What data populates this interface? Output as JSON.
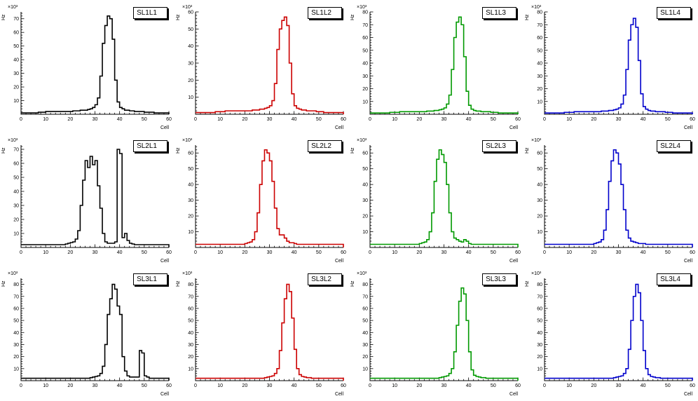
{
  "layout": {
    "rows": 3,
    "cols": 4
  },
  "axis": {
    "xlabel": "Cell",
    "ylabel": "Hz",
    "y_multiplier": "×10³"
  },
  "chart_data": [
    {
      "type": "histogram",
      "title": "SL1L1",
      "color": "#000000",
      "xlabel": "Cell",
      "ylabel": "Hz",
      "y_axis_multiplier": "×10³",
      "x_range": [
        0,
        60
      ],
      "y_max": 75,
      "y_tick_step": 10,
      "bin_width": 1,
      "bins_unit": "×10³ Hz",
      "bins": [
        1,
        1,
        1,
        1,
        1,
        1,
        1,
        1.5,
        1.5,
        1.5,
        2,
        2,
        2,
        2,
        2,
        2,
        2,
        2,
        2,
        2,
        2,
        2.5,
        2.5,
        2.5,
        3,
        3,
        3,
        3.5,
        4,
        5,
        7,
        12,
        28,
        52,
        65,
        72,
        70,
        55,
        25,
        9,
        5,
        4,
        3,
        3,
        2.5,
        2.5,
        2,
        2,
        2,
        2,
        1.5,
        1.5,
        1.5,
        1.5,
        1,
        1,
        1,
        1,
        1,
        1
      ]
    },
    {
      "type": "histogram",
      "title": "SL1L2",
      "color": "#cc0000",
      "xlabel": "Cell",
      "ylabel": "Hz",
      "y_axis_multiplier": "×10³",
      "x_range": [
        0,
        60
      ],
      "y_max": 60,
      "y_tick_step": 10,
      "bin_width": 1,
      "bins_unit": "×10³ Hz",
      "bins": [
        1,
        1,
        1,
        1,
        1,
        1,
        1,
        1,
        1.5,
        1.5,
        1.5,
        1.5,
        2,
        2,
        2,
        2,
        2,
        2,
        2,
        2,
        2,
        2,
        2,
        2.5,
        2.5,
        2.5,
        3,
        3,
        3.5,
        4,
        5,
        8,
        18,
        38,
        50,
        55,
        57,
        52,
        30,
        12,
        5,
        3.5,
        3,
        2.5,
        2.5,
        2,
        2,
        2,
        2,
        1.5,
        1.5,
        1.5,
        1,
        1,
        1,
        1,
        1,
        1,
        1,
        1
      ]
    },
    {
      "type": "histogram",
      "title": "SL1L3",
      "color": "#009900",
      "xlabel": "Cell",
      "ylabel": "Hz",
      "y_axis_multiplier": "×10³",
      "x_range": [
        0,
        60
      ],
      "y_max": 80,
      "y_tick_step": 10,
      "bin_width": 1,
      "bins_unit": "×10³ Hz",
      "bins": [
        1,
        1,
        1,
        1,
        1,
        1,
        1,
        1,
        1.5,
        1.5,
        1.5,
        1.5,
        2,
        2,
        2,
        2,
        2,
        2,
        2,
        2,
        2,
        2,
        2,
        2.5,
        2.5,
        2.5,
        3,
        3,
        3.5,
        4,
        5,
        8,
        15,
        35,
        60,
        72,
        76,
        70,
        45,
        18,
        7,
        4,
        3,
        2.5,
        2.5,
        2,
        2,
        2,
        2,
        1.5,
        1.5,
        1.5,
        1,
        1,
        1,
        1,
        1,
        1,
        1,
        1
      ]
    },
    {
      "type": "histogram",
      "title": "SL1L4",
      "color": "#0000cc",
      "xlabel": "Cell",
      "ylabel": "Hz",
      "y_axis_multiplier": "×10³",
      "x_range": [
        0,
        60
      ],
      "y_max": 80,
      "y_tick_step": 10,
      "bin_width": 1,
      "bins_unit": "×10³ Hz",
      "bins": [
        1,
        1,
        1,
        1,
        1,
        1,
        1,
        1,
        1.5,
        1.5,
        1.5,
        1.5,
        2,
        2,
        2,
        2,
        2,
        2,
        2,
        2,
        2,
        2,
        2,
        2.5,
        2.5,
        2.5,
        3,
        3,
        3.5,
        4,
        5,
        8,
        15,
        35,
        58,
        70,
        75,
        68,
        42,
        16,
        6,
        4,
        3,
        2.5,
        2.5,
        2,
        2,
        2,
        2,
        1.5,
        1.5,
        1.5,
        1,
        1,
        1,
        1,
        1,
        1,
        1,
        1
      ]
    },
    {
      "type": "histogram",
      "title": "SL2L1",
      "color": "#000000",
      "xlabel": "Cell",
      "ylabel": "Hz",
      "y_axis_multiplier": "×10³",
      "x_range": [
        0,
        60
      ],
      "y_max": 73,
      "y_tick_step": 10,
      "bin_width": 1,
      "bins_unit": "×10³ Hz",
      "bins": [
        2,
        2,
        2,
        2,
        2,
        2,
        2,
        2,
        2,
        2,
        2,
        2,
        2,
        2,
        2,
        2,
        2,
        2,
        2.5,
        3,
        3.5,
        4,
        6,
        12,
        30,
        48,
        62,
        57,
        65,
        59,
        62,
        44,
        28,
        10,
        4,
        3,
        3,
        3,
        4,
        70,
        67,
        7,
        10,
        5,
        3,
        2.5,
        2,
        2,
        2,
        2,
        2,
        2,
        2,
        2,
        2,
        2,
        2,
        2,
        2,
        2
      ]
    },
    {
      "type": "histogram",
      "title": "SL2L2",
      "color": "#cc0000",
      "xlabel": "Cell",
      "ylabel": "Hz",
      "y_axis_multiplier": "×10³",
      "x_range": [
        0,
        60
      ],
      "y_max": 65,
      "y_tick_step": 10,
      "bin_width": 1,
      "bins_unit": "×10³ Hz",
      "bins": [
        2,
        2,
        2,
        2,
        2,
        2,
        2,
        2,
        2,
        2,
        2,
        2,
        2,
        2,
        2,
        2,
        2,
        2,
        2,
        2,
        2.5,
        3,
        3.5,
        5,
        10,
        22,
        40,
        55,
        62,
        60,
        55,
        42,
        25,
        12,
        8,
        8,
        6,
        4,
        3,
        3,
        2.5,
        2,
        2,
        2,
        2,
        2,
        2,
        2,
        2,
        2,
        2,
        2,
        2,
        2,
        2,
        2,
        2,
        2,
        2,
        2
      ]
    },
    {
      "type": "histogram",
      "title": "SL2L3",
      "color": "#009900",
      "xlabel": "Cell",
      "ylabel": "Hz",
      "y_axis_multiplier": "×10³",
      "x_range": [
        0,
        60
      ],
      "y_max": 65,
      "y_tick_step": 10,
      "bin_width": 1,
      "bins_unit": "×10³ Hz",
      "bins": [
        2,
        2,
        2,
        2,
        2,
        2,
        2,
        2,
        2,
        2,
        2,
        2,
        2,
        2,
        2,
        2,
        2,
        2,
        2,
        2,
        2.5,
        3,
        3.5,
        5,
        10,
        22,
        42,
        56,
        62,
        59,
        54,
        40,
        22,
        10,
        6,
        5,
        4,
        3.5,
        5,
        4,
        2.5,
        2,
        2,
        2,
        2,
        2,
        2,
        2,
        2,
        2,
        2,
        2,
        2,
        2,
        2,
        2,
        2,
        2,
        2,
        2
      ]
    },
    {
      "type": "histogram",
      "title": "SL2L4",
      "color": "#0000cc",
      "xlabel": "Cell",
      "ylabel": "Hz",
      "y_axis_multiplier": "×10³",
      "x_range": [
        0,
        60
      ],
      "y_max": 65,
      "y_tick_step": 10,
      "bin_width": 1,
      "bins_unit": "×10³ Hz",
      "bins": [
        2,
        2,
        2,
        2,
        2,
        2,
        2,
        2,
        2,
        2,
        2,
        2,
        2,
        2,
        2,
        2,
        2,
        2,
        2,
        2,
        2.5,
        3,
        3.5,
        5,
        11,
        24,
        42,
        55,
        62,
        60,
        53,
        40,
        24,
        11,
        6,
        4,
        3.5,
        3,
        2.5,
        2.5,
        2.5,
        2,
        2,
        2,
        2,
        2,
        2,
        2,
        2,
        2,
        2,
        2,
        2,
        2,
        2,
        2,
        2,
        2,
        2,
        2
      ]
    },
    {
      "type": "histogram",
      "title": "SL3L1",
      "color": "#000000",
      "xlabel": "Cell",
      "ylabel": "Hz",
      "y_axis_multiplier": "×10³",
      "x_range": [
        0,
        60
      ],
      "y_max": 85,
      "y_tick_step": 10,
      "bin_width": 1,
      "bins_unit": "×10³ Hz",
      "bins": [
        2,
        2,
        2,
        2,
        2,
        2,
        2,
        2,
        2,
        2,
        2,
        2,
        2,
        2,
        2,
        2,
        2,
        2,
        2,
        2,
        2,
        2,
        2,
        2,
        2,
        2,
        2,
        2,
        2.5,
        3,
        3.5,
        4,
        6,
        12,
        30,
        55,
        68,
        80,
        76,
        62,
        55,
        20,
        8,
        4,
        3,
        3,
        3,
        3,
        25,
        23,
        4,
        3,
        2,
        2,
        2,
        2,
        2,
        2,
        2,
        2
      ]
    },
    {
      "type": "histogram",
      "title": "SL3L2",
      "color": "#cc0000",
      "xlabel": "Cell",
      "ylabel": "Hz",
      "y_axis_multiplier": "×10³",
      "x_range": [
        0,
        60
      ],
      "y_max": 85,
      "y_tick_step": 10,
      "bin_width": 1,
      "bins_unit": "×10³ Hz",
      "bins": [
        2,
        2,
        2,
        2,
        2,
        2,
        2,
        2,
        2,
        2,
        2,
        2,
        2,
        2,
        2,
        2,
        2,
        2,
        2,
        2,
        2,
        2,
        2,
        2,
        2,
        2,
        2,
        2,
        2.5,
        3,
        3.5,
        4,
        6,
        10,
        25,
        48,
        68,
        80,
        74,
        52,
        26,
        10,
        5,
        3.5,
        3,
        2.5,
        2.5,
        2,
        2,
        2,
        2,
        2,
        2,
        2,
        2,
        2,
        2,
        2,
        2,
        2
      ]
    },
    {
      "type": "histogram",
      "title": "SL3L3",
      "color": "#009900",
      "xlabel": "Cell",
      "ylabel": "Hz",
      "y_axis_multiplier": "×10³",
      "x_range": [
        0,
        60
      ],
      "y_max": 85,
      "y_tick_step": 10,
      "bin_width": 1,
      "bins_unit": "×10³ Hz",
      "bins": [
        2,
        2,
        2,
        2,
        2,
        2,
        2,
        2,
        2,
        2,
        2,
        2,
        2,
        2,
        2,
        2,
        2,
        2,
        2,
        2,
        2,
        2,
        2,
        2,
        2,
        2,
        2,
        2,
        2.5,
        3,
        3.5,
        4,
        6,
        10,
        24,
        46,
        66,
        77,
        72,
        50,
        24,
        9,
        4.5,
        3.5,
        3,
        2.5,
        2.5,
        2,
        2,
        2,
        2,
        2,
        2,
        2,
        2,
        2,
        2,
        2,
        2,
        2
      ]
    },
    {
      "type": "histogram",
      "title": "SL3L4",
      "color": "#0000cc",
      "xlabel": "Cell",
      "ylabel": "Hz",
      "y_axis_multiplier": "×10³",
      "x_range": [
        0,
        60
      ],
      "y_max": 85,
      "y_tick_step": 10,
      "bin_width": 1,
      "bins_unit": "×10³ Hz",
      "bins": [
        2,
        2,
        2,
        2,
        2,
        2,
        2,
        2,
        2,
        2,
        2,
        2,
        2,
        2,
        2,
        2,
        2,
        2,
        2,
        2,
        2,
        2,
        2,
        2,
        2,
        2,
        2,
        2,
        2.5,
        3,
        3.5,
        4,
        6,
        10,
        26,
        50,
        70,
        80,
        73,
        50,
        25,
        10,
        5,
        3.5,
        3,
        2.5,
        2.5,
        2,
        2,
        2,
        2,
        2,
        2,
        2,
        2,
        2,
        2,
        2,
        2,
        2
      ]
    }
  ]
}
